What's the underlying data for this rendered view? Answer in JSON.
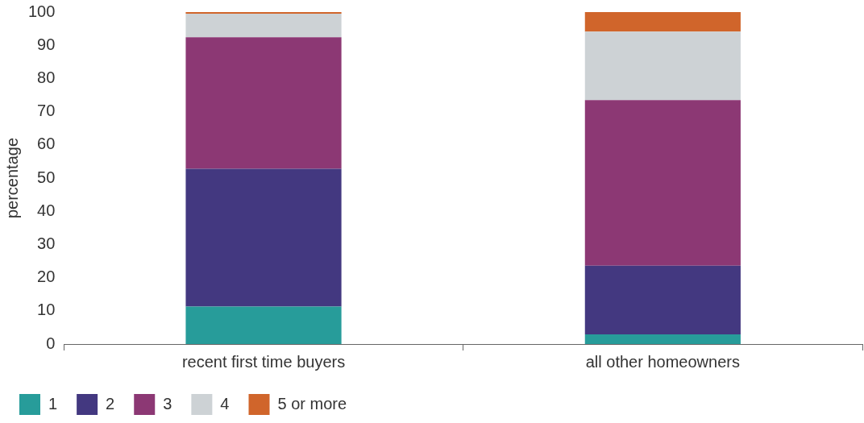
{
  "chart_data": {
    "type": "bar",
    "stacked": true,
    "ylabel": "percentage",
    "categories": [
      "recent first time buyers",
      "all other homeowners"
    ],
    "series": [
      {
        "name": "1",
        "color": "#279c9a",
        "values": [
          11.3,
          2.9
        ]
      },
      {
        "name": "2",
        "color": "#433880",
        "values": [
          41.5,
          20.7
        ]
      },
      {
        "name": "3",
        "color": "#8c3874",
        "values": [
          39.6,
          49.9
        ]
      },
      {
        "name": "4",
        "color": "#cdd2d5",
        "values": [
          7.1,
          20.6
        ]
      },
      {
        "name": "5 or more",
        "color": "#d0652b",
        "values": [
          0.5,
          5.9
        ]
      }
    ],
    "ylim": [
      0,
      100
    ],
    "yticks": [
      0,
      10,
      20,
      30,
      40,
      50,
      60,
      70,
      80,
      90,
      100
    ],
    "grid": false,
    "legend": "bottom left"
  }
}
